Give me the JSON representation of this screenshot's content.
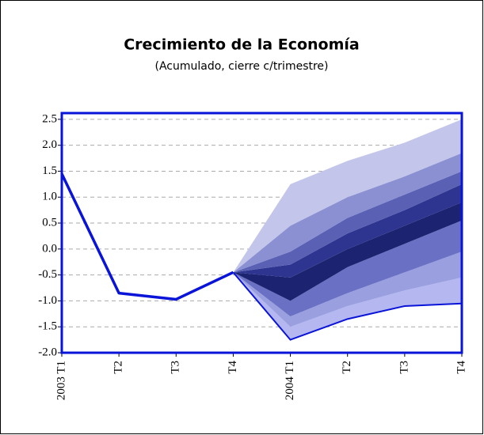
{
  "chart_data": {
    "type": "fan",
    "title": "Crecimiento de la Economía",
    "subtitle": "(Acumulado, cierre c/trimestre)",
    "categories": [
      "2003 T1",
      "T2",
      "T3",
      "T4",
      "2004 T1",
      "T2",
      "T3",
      "T4"
    ],
    "line": {
      "color": "#0a14d8",
      "values": [
        1.45,
        -0.85,
        -0.97,
        -0.45,
        null,
        null,
        null,
        null
      ]
    },
    "boundaries": [
      {
        "values": [
          null,
          null,
          null,
          -0.45,
          -1.75,
          -1.35,
          -1.1,
          -1.05
        ],
        "color": "#0a14d8"
      },
      {
        "values": [
          null,
          null,
          null,
          -0.45,
          -1.5,
          -1.1,
          -0.8,
          -0.55
        ]
      },
      {
        "values": [
          null,
          null,
          null,
          -0.45,
          -1.3,
          -0.85,
          -0.45,
          -0.05
        ]
      },
      {
        "values": [
          null,
          null,
          null,
          -0.45,
          -1.0,
          -0.35,
          0.1,
          0.55
        ]
      },
      {
        "values": [
          null,
          null,
          null,
          -0.45,
          -0.55,
          0.0,
          0.45,
          0.9
        ]
      },
      {
        "values": [
          null,
          null,
          null,
          -0.45,
          -0.3,
          0.3,
          0.75,
          1.25
        ]
      },
      {
        "values": [
          null,
          null,
          null,
          -0.45,
          -0.05,
          0.6,
          1.05,
          1.5
        ]
      },
      {
        "values": [
          null,
          null,
          null,
          -0.45,
          0.45,
          1.0,
          1.4,
          1.85
        ]
      },
      {
        "values": [
          null,
          null,
          null,
          -0.45,
          1.25,
          1.7,
          2.05,
          2.5
        ]
      }
    ],
    "band_colors": [
      "#b4b7f0",
      "#9a9fe0",
      "#6a71c4",
      "#1c2370",
      "#2e3590",
      "#5a61b5",
      "#8a90d2",
      "#c3c6ea"
    ],
    "ylim": [
      -2.0,
      2.62
    ],
    "yticks": [
      {
        "value": -2.0,
        "label": "-2.0"
      },
      -1.5,
      {
        "value": -1.0,
        "label": "-1.0"
      },
      -0.5,
      {
        "value": 0.0,
        "label": "0.0"
      },
      0.5,
      {
        "value": 1.0,
        "label": "1.0"
      },
      1.5,
      {
        "value": 2.0,
        "label": "2.0"
      },
      2.5
    ],
    "grid": true,
    "border_color": "#0a14d8"
  }
}
